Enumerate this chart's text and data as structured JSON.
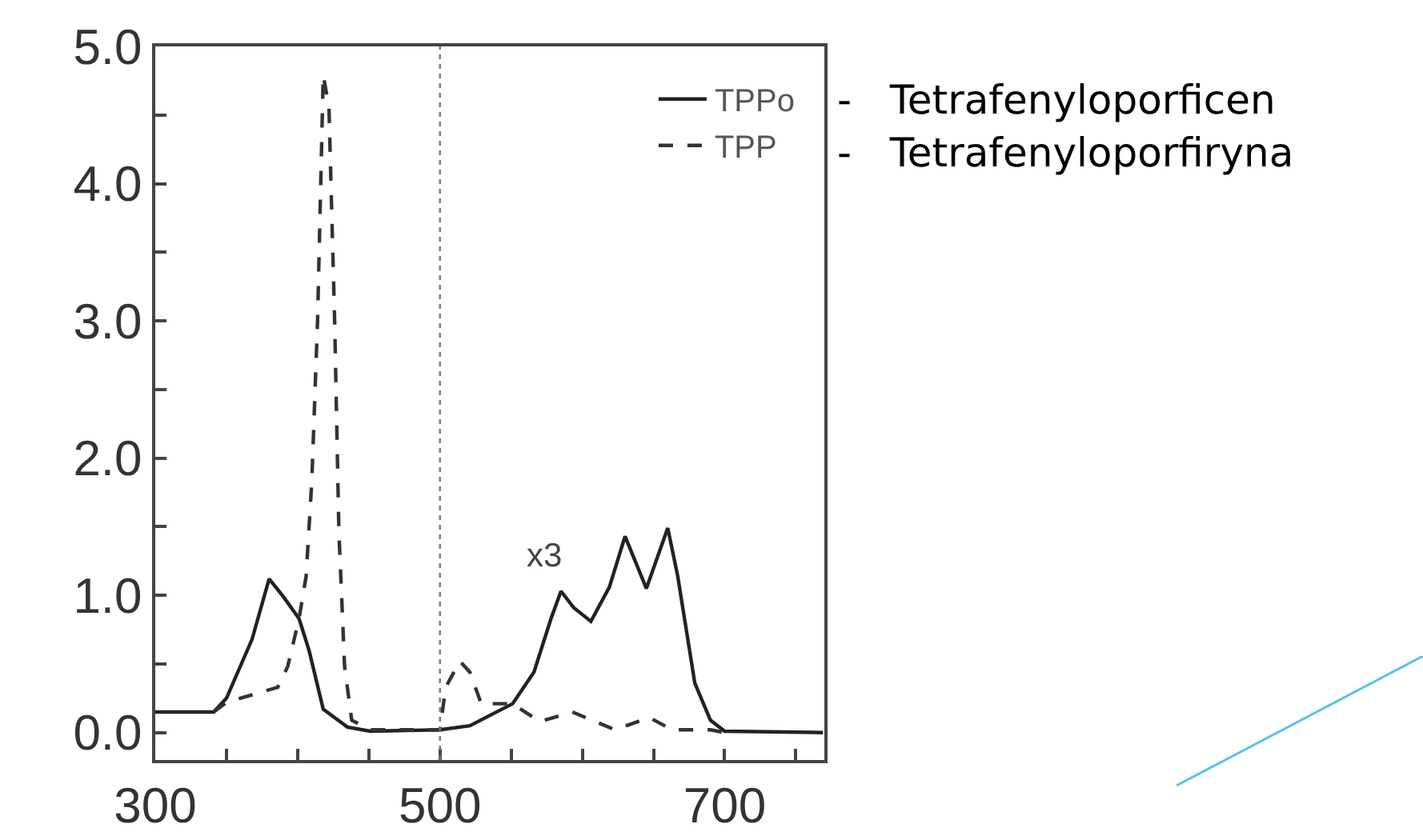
{
  "chart_data": {
    "type": "line",
    "xlim": [
      300,
      770
    ],
    "ylim": [
      -0.2,
      5.0
    ],
    "xticks": [
      300,
      {
        "value": 350,
        "label": null
      },
      {
        "value": 400,
        "label": null
      },
      {
        "value": 450,
        "label": null
      },
      500,
      {
        "value": 550,
        "label": null
      },
      {
        "value": 600,
        "label": null
      },
      {
        "value": 650,
        "label": null
      },
      700,
      {
        "value": 750,
        "label": null
      }
    ],
    "yticks": [
      {
        "value": 0,
        "label": "0.0"
      },
      {
        "value": 0.5,
        "label": null
      },
      {
        "value": 1,
        "label": "1.0"
      },
      {
        "value": 1.5,
        "label": null
      },
      {
        "value": 2,
        "label": "2.0"
      },
      {
        "value": 2.5,
        "label": null
      },
      {
        "value": 3,
        "label": "3.0"
      },
      {
        "value": 3.5,
        "label": null
      },
      {
        "value": 4,
        "label": "4.0"
      },
      {
        "value": 4.5,
        "label": null
      },
      {
        "value": 5,
        "label": "5.0"
      }
    ],
    "grid": false,
    "legend": "top right",
    "marker": "none",
    "series": [
      {
        "name": "TPPo",
        "color": "#222222",
        "line_style": "solid",
        "x": [
          300,
          341,
          350,
          368,
          380,
          390,
          401,
          408,
          418,
          435,
          451,
          500,
          521,
          551,
          566,
          578,
          585,
          594,
          606,
          619,
          630,
          645,
          660,
          667,
          679,
          690,
          700,
          769
        ],
        "values": [
          0.15,
          0.15,
          0.25,
          0.68,
          1.12,
          0.99,
          0.83,
          0.6,
          0.17,
          0.04,
          0.01,
          0.02,
          0.05,
          0.21,
          0.44,
          0.83,
          1.03,
          0.91,
          0.81,
          1.06,
          1.43,
          1.05,
          1.49,
          1.14,
          0.36,
          0.09,
          0.01,
          0.0
        ]
      },
      {
        "name": "TPP",
        "color": "#333333",
        "line_style": "dashed",
        "x": [
          341,
          350,
          386,
          393,
          401,
          406,
          410,
          414,
          418,
          422,
          426,
          429,
          433,
          438,
          451,
          500,
          504,
          514,
          521,
          529,
          551,
          570,
          593,
          623,
          647,
          663,
          690,
          700
        ],
        "values": [
          0.15,
          0.22,
          0.33,
          0.48,
          0.83,
          1.14,
          1.84,
          3.0,
          4.79,
          4.56,
          3.0,
          1.46,
          0.48,
          0.09,
          0.02,
          0.02,
          0.33,
          0.52,
          0.44,
          0.21,
          0.21,
          0.08,
          0.15,
          0.02,
          0.11,
          0.02,
          0.02,
          0.0
        ]
      }
    ],
    "ref_lines": [
      {
        "axis": "x",
        "value": 500,
        "color": "#777777",
        "line_style": "dotted"
      }
    ],
    "annotations": [
      "x3",
      "-   Tetrafenyloporficen",
      "-   Tetrafenyloporfiryna"
    ]
  }
}
